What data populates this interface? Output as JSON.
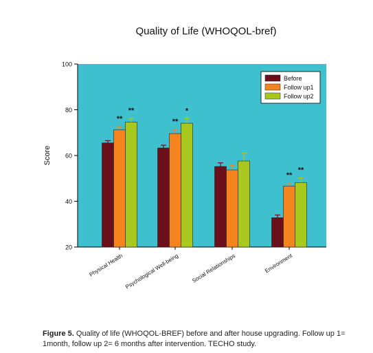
{
  "chart_data": {
    "type": "bar",
    "title": "Quality of Life (WHOQOL-bref)",
    "ylabel": "Score",
    "xlabel": "",
    "ylim": [
      20,
      100
    ],
    "yticks": [
      20,
      40,
      60,
      80,
      100
    ],
    "categories": [
      "Physical Health",
      "Psychological Well-being",
      "Social Relationships",
      "Environment"
    ],
    "series": [
      {
        "name": "Before",
        "color": "#6b0f1a",
        "values": [
          65.5,
          63.3,
          55.2,
          32.8
        ],
        "errors": [
          1.0,
          1.2,
          1.6,
          1.2
        ]
      },
      {
        "name": "Follow up1",
        "color": "#f5841f",
        "values": [
          71.2,
          69.6,
          53.7,
          46.6
        ],
        "errors": [
          1.4,
          1.8,
          2.0,
          1.4
        ]
      },
      {
        "name": "Follow up2",
        "color": "#a8c81e",
        "values": [
          74.6,
          74.1,
          57.6,
          48.2
        ],
        "errors": [
          1.6,
          2.0,
          3.5,
          2.0
        ]
      }
    ],
    "annotations": [
      {
        "category": 0,
        "series": 1,
        "text": "**"
      },
      {
        "category": 0,
        "series": 2,
        "text": "**"
      },
      {
        "category": 1,
        "series": 1,
        "text": "**"
      },
      {
        "category": 1,
        "series": 2,
        "text": "*"
      },
      {
        "category": 3,
        "series": 1,
        "text": "**"
      },
      {
        "category": 3,
        "series": 2,
        "text": "**"
      }
    ],
    "legend_position": "top-right",
    "background_color": "#3fc0cf",
    "grid": false
  },
  "caption": {
    "label": "Figure 5.",
    "text": " Quality of life (WHOQOL-BREF) before and after house upgrading. Follow up 1= 1month, follow up 2= 6 months after intervention. TECHO study."
  }
}
